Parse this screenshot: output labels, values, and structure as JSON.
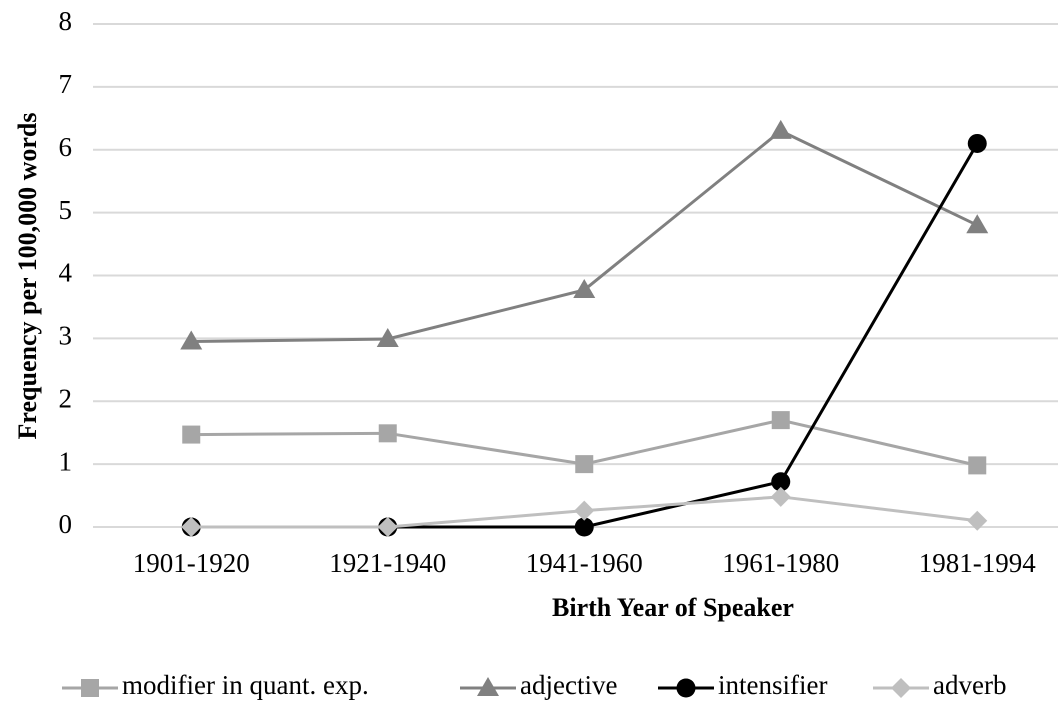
{
  "chart_data": {
    "type": "line",
    "xlabel": "Birth Year of Speaker",
    "ylabel": "Frequency per 100,000 words",
    "categories": [
      "1901-1920",
      "1921-1940",
      "1941-1960",
      "1961-1980",
      "1981-1994"
    ],
    "series": [
      {
        "name": "modifier in quant. exp.",
        "color": "#a6a6a6",
        "marker": "square",
        "values": [
          1.47,
          1.49,
          1.0,
          1.7,
          0.98
        ]
      },
      {
        "name": "adjective",
        "color": "#808080",
        "marker": "triangle",
        "values": [
          2.95,
          2.99,
          3.77,
          6.3,
          4.8
        ]
      },
      {
        "name": "intensifier",
        "color": "#000000",
        "marker": "circle",
        "values": [
          0,
          0,
          0,
          0.72,
          6.1
        ]
      },
      {
        "name": "adverb",
        "color": "#bfbfbf",
        "marker": "diamond",
        "values": [
          0,
          0,
          0.26,
          0.48,
          0.1
        ]
      }
    ],
    "ylim": [
      0,
      8
    ],
    "yticks": [
      0,
      1,
      2,
      3,
      4,
      5,
      6,
      7,
      8
    ],
    "grid": true,
    "legend": "bottom"
  }
}
